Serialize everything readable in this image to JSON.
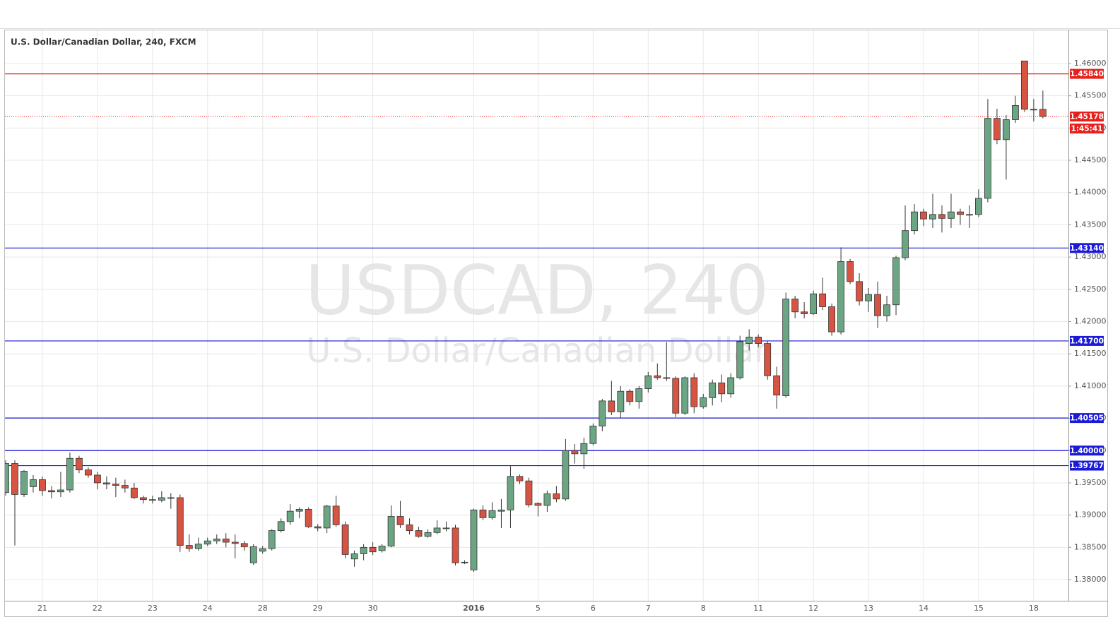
{
  "chart_data": {
    "type": "candlestick",
    "title": "U.S. Dollar/Canadian Dollar, 240, FXCM",
    "watermark": "USDCAD, 240",
    "watermark_subtitle": "U.S. Dollar/Canadian Dollar",
    "countdown": "1:45:41",
    "categories": [
      null,
      null,
      null,
      null,
      "21",
      null,
      null,
      null,
      null,
      null,
      "22",
      null,
      null,
      null,
      null,
      null,
      "23",
      null,
      null,
      null,
      null,
      null,
      "24",
      null,
      null,
      null,
      null,
      null,
      "28",
      null,
      null,
      null,
      null,
      null,
      "29",
      null,
      null,
      null,
      null,
      null,
      "30",
      null,
      null,
      null,
      null,
      null,
      null,
      null,
      null,
      null,
      null,
      "2016",
      null,
      null,
      null,
      null,
      null,
      null,
      "5",
      null,
      null,
      null,
      null,
      null,
      "6",
      null,
      null,
      null,
      null,
      null,
      "7",
      null,
      null,
      null,
      null,
      null,
      "8",
      null,
      null,
      null,
      null,
      null,
      "11",
      null,
      null,
      null,
      null,
      null,
      "12",
      null,
      null,
      null,
      null,
      null,
      "13",
      null,
      null,
      null,
      null,
      null,
      "14",
      null,
      null,
      null,
      null,
      null,
      "15",
      null,
      null,
      null,
      null,
      null,
      "18",
      null
    ],
    "open": [
      1.3935,
      1.398,
      1.3932,
      1.3944,
      1.3955,
      1.3938,
      1.3936,
      1.3939,
      1.3988,
      1.397,
      1.3962,
      1.395,
      1.3948,
      1.3946,
      1.3942,
      1.3927,
      1.3924,
      1.3923,
      1.3927,
      1.3927,
      1.3853,
      1.3848,
      1.3855,
      1.386,
      1.3863,
      1.3858,
      1.3856,
      1.3826,
      1.3844,
      1.3848,
      1.3876,
      1.389,
      1.3906,
      1.3909,
      1.3882,
      1.388,
      1.3914,
      1.3885,
      1.3832,
      1.384,
      1.385,
      1.3845,
      1.3852,
      1.3898,
      1.3885,
      1.3876,
      1.3867,
      1.3873,
      1.388,
      1.388,
      1.3826,
      1.3815,
      1.3908,
      1.3896,
      1.3906,
      1.3908,
      1.396,
      1.3953,
      1.3918,
      1.3915,
      1.3933,
      1.3925,
      1.4,
      1.3995,
      1.4011,
      1.4038,
      1.4077,
      1.406,
      1.4092,
      1.4076,
      1.4096,
      1.4116,
      1.4113,
      1.4112,
      1.4058,
      1.4113,
      1.4068,
      1.4082,
      1.4105,
      1.4088,
      1.4113,
      1.4166,
      1.4176,
      1.4166,
      1.4116,
      1.4085,
      1.4235,
      1.4215,
      1.4212,
      1.4243,
      1.4223,
      1.4184,
      1.4293,
      1.4262,
      1.4232,
      1.4242,
      1.4209,
      1.4226,
      1.4299,
      1.4341,
      1.437,
      1.4359,
      1.4366,
      1.436,
      1.437,
      1.4366,
      1.4366,
      1.4391,
      1.4515,
      1.4482,
      1.4513,
      1.4604,
      1.4529,
      1.4529
    ],
    "high": [
      1.3985,
      1.3985,
      1.397,
      1.3962,
      1.396,
      1.3945,
      1.3967,
      1.3997,
      1.3992,
      1.3974,
      1.3967,
      1.396,
      1.3958,
      1.3955,
      1.395,
      1.393,
      1.393,
      1.3937,
      1.3934,
      1.3932,
      1.387,
      1.3865,
      1.3865,
      1.387,
      1.3872,
      1.387,
      1.386,
      1.3855,
      1.3852,
      1.3878,
      1.3895,
      1.3917,
      1.3912,
      1.3912,
      1.3886,
      1.3916,
      1.393,
      1.389,
      1.3845,
      1.3855,
      1.3858,
      1.3855,
      1.3915,
      1.3922,
      1.3895,
      1.3882,
      1.3878,
      1.3892,
      1.389,
      1.3885,
      1.383,
      1.391,
      1.3915,
      1.392,
      1.3925,
      1.3976,
      1.3963,
      1.3958,
      1.392,
      1.3938,
      1.3945,
      1.4018,
      1.401,
      1.402,
      1.4042,
      1.408,
      1.4108,
      1.41,
      1.4095,
      1.41,
      1.4122,
      1.4135,
      1.4168,
      1.4115,
      1.4115,
      1.412,
      1.4088,
      1.411,
      1.4118,
      1.412,
      1.4178,
      1.4188,
      1.418,
      1.417,
      1.413,
      1.4245,
      1.424,
      1.423,
      1.4248,
      1.4268,
      1.4228,
      1.4315,
      1.4297,
      1.4275,
      1.4252,
      1.4262,
      1.424,
      1.4302,
      1.438,
      1.4382,
      1.4375,
      1.4398,
      1.438,
      1.4398,
      1.4375,
      1.438,
      1.4405,
      1.4545,
      1.453,
      1.452,
      1.455,
      1.4604,
      1.4545,
      1.4558
    ],
    "low": [
      1.393,
      1.3853,
      1.3928,
      1.3935,
      1.393,
      1.3926,
      1.3928,
      1.3935,
      1.3965,
      1.3958,
      1.394,
      1.394,
      1.3928,
      1.3935,
      1.3925,
      1.3918,
      1.3918,
      1.392,
      1.391,
      1.3843,
      1.3843,
      1.3845,
      1.3852,
      1.3855,
      1.385,
      1.3833,
      1.3845,
      1.3823,
      1.384,
      1.3845,
      1.3873,
      1.3885,
      1.3895,
      1.388,
      1.3875,
      1.3872,
      1.3882,
      1.3833,
      1.382,
      1.383,
      1.3838,
      1.3842,
      1.385,
      1.388,
      1.387,
      1.3865,
      1.3865,
      1.387,
      1.3875,
      1.3822,
      1.3824,
      1.3812,
      1.3892,
      1.3893,
      1.388,
      1.388,
      1.3948,
      1.3912,
      1.3898,
      1.3905,
      1.392,
      1.3922,
      1.398,
      1.3972,
      1.4008,
      1.403,
      1.4055,
      1.405,
      1.407,
      1.4065,
      1.409,
      1.411,
      1.4108,
      1.4052,
      1.4055,
      1.4058,
      1.4065,
      1.407,
      1.4075,
      1.4082,
      1.411,
      1.4155,
      1.416,
      1.411,
      1.4065,
      1.4082,
      1.4205,
      1.4205,
      1.421,
      1.4218,
      1.4178,
      1.418,
      1.4258,
      1.4225,
      1.4215,
      1.419,
      1.42,
      1.421,
      1.4295,
      1.4335,
      1.4348,
      1.4345,
      1.4338,
      1.4345,
      1.435,
      1.4345,
      1.4362,
      1.4385,
      1.4475,
      1.442,
      1.4508,
      1.4525,
      1.451,
      1.4515
    ],
    "close": [
      1.398,
      1.3932,
      1.3968,
      1.3955,
      1.3938,
      1.3936,
      1.3939,
      1.3988,
      1.397,
      1.3962,
      1.395,
      1.3948,
      1.3946,
      1.3942,
      1.3927,
      1.3924,
      1.3924,
      1.3927,
      1.3927,
      1.3853,
      1.3848,
      1.3855,
      1.386,
      1.3863,
      1.3858,
      1.3856,
      1.3851,
      1.3851,
      1.3848,
      1.3876,
      1.389,
      1.3906,
      1.3909,
      1.3882,
      1.388,
      1.3914,
      1.3885,
      1.3839,
      1.384,
      1.385,
      1.3843,
      1.3852,
      1.3898,
      1.3885,
      1.3876,
      1.3867,
      1.3873,
      1.388,
      1.388,
      1.3826,
      1.3827,
      1.3908,
      1.3896,
      1.3907,
      1.3908,
      1.396,
      1.3953,
      1.3916,
      1.3915,
      1.3933,
      1.3925,
      1.4,
      1.3995,
      1.4011,
      1.4038,
      1.4077,
      1.406,
      1.4092,
      1.4076,
      1.4096,
      1.4116,
      1.4113,
      1.4112,
      1.4058,
      1.4113,
      1.4068,
      1.4082,
      1.4105,
      1.4088,
      1.4113,
      1.4169,
      1.4176,
      1.4166,
      1.4116,
      1.4086,
      1.4235,
      1.4215,
      1.4212,
      1.4243,
      1.4223,
      1.4184,
      1.4293,
      1.4262,
      1.4232,
      1.4242,
      1.4209,
      1.4226,
      1.4299,
      1.4341,
      1.437,
      1.4359,
      1.4366,
      1.436,
      1.437,
      1.4366,
      1.4365,
      1.4391,
      1.4515,
      1.4482,
      1.4513,
      1.4535,
      1.4529,
      1.4529,
      1.45178
    ],
    "up_color": "#6ba583",
    "down_color": "#d75442",
    "ylim": [
      1.37672,
      1.46514
    ],
    "yticks": [
      {
        "value": 1.38,
        "label": "1.38000"
      },
      {
        "value": 1.385,
        "label": "1.38500"
      },
      {
        "value": 1.39,
        "label": "1.39000"
      },
      {
        "value": 1.395,
        "label": "1.39500"
      },
      {
        "value": 1.4,
        "label": "1.40000"
      },
      {
        "value": 1.405,
        "label": "1.40500"
      },
      {
        "value": 1.41,
        "label": "1.41000"
      },
      {
        "value": 1.415,
        "label": "1.41500"
      },
      {
        "value": 1.42,
        "label": "1.42000"
      },
      {
        "value": 1.425,
        "label": "1.42500"
      },
      {
        "value": 1.43,
        "label": "1.43000"
      },
      {
        "value": 1.435,
        "label": "1.43500"
      },
      {
        "value": 1.44,
        "label": "1.44000"
      },
      {
        "value": 1.445,
        "label": "1.44500"
      },
      {
        "value": 1.45,
        "label": "1.45000"
      },
      {
        "value": 1.455,
        "label": "1.45500"
      },
      {
        "value": 1.46,
        "label": "1.46000"
      }
    ],
    "grid": true,
    "levels": [
      {
        "value": 1.4584,
        "label": "1.45840",
        "color": "#e8201c"
      },
      {
        "value": 1.4314,
        "label": "1.43140",
        "color": "#1a1ad8"
      },
      {
        "value": 1.417,
        "label": "1.41700",
        "color": "#1a1ad8"
      },
      {
        "value": 1.40505,
        "label": "1.40505",
        "color": "#1a1ad8"
      },
      {
        "value": 1.4,
        "label": "1.40000",
        "color": "#1a1ad8"
      },
      {
        "value": 1.39767,
        "label": "1.39767",
        "color": "#1a1ad8"
      }
    ],
    "last_price_color": "#e8201c"
  }
}
